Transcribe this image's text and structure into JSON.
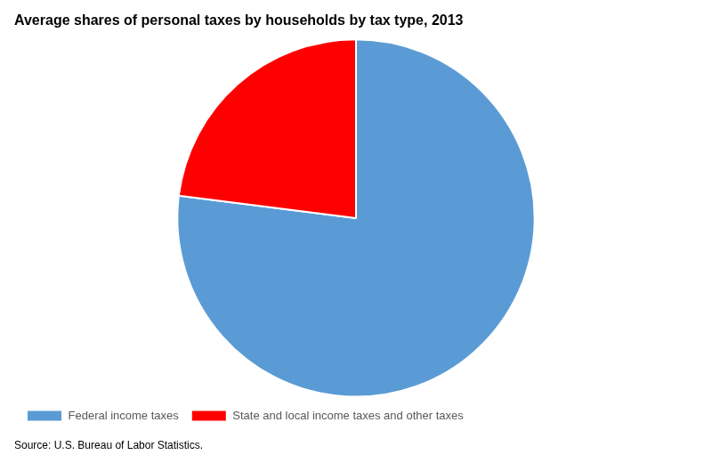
{
  "chart_data": {
    "type": "pie",
    "title": "Average shares of personal taxes by households by tax type, 2013",
    "categories": [
      "Federal income taxes",
      "State and local income taxes and other taxes"
    ],
    "values": [
      77,
      23
    ],
    "colors": [
      "#5B9BD5",
      "#FF0000"
    ],
    "legend": "bottom",
    "source": "Source: U.S. Bureau of Labor Statistics."
  }
}
